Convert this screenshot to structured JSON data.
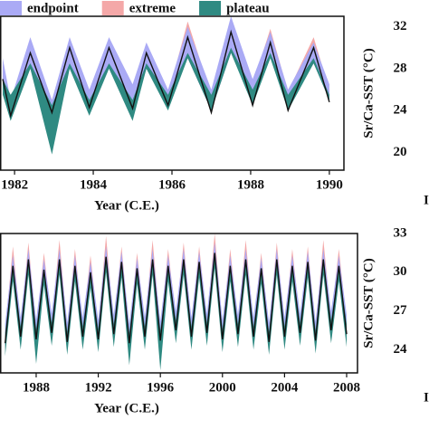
{
  "chart_data": [
    {
      "type": "line",
      "x": [
        1981.7,
        1981.9,
        1982.4,
        1982.95,
        1983.4,
        1983.9,
        1984.4,
        1985.0,
        1985.35,
        1985.9,
        1986.4,
        1987.0,
        1987.5,
        1988.05,
        1988.5,
        1988.95,
        1989.6,
        1990.0
      ],
      "xlim": [
        1981.63,
        1990.37
      ],
      "xticks": [
        1982,
        1984,
        1986,
        1988,
        1990
      ],
      "ylim": [
        18.3,
        33.0
      ],
      "y2ticks": [
        32,
        28,
        24,
        20
      ],
      "x_label": "Year (C.E.)",
      "y2_label": "Sr/Ca-SST (°C)",
      "edge_text": "I",
      "series": [
        {
          "name": "extreme",
          "color": "#f4a8a8",
          "high": [
            28.5,
            25,
            30.5,
            25,
            30.5,
            25.5,
            30.5,
            26,
            30,
            25.5,
            32.5,
            25.5,
            32.5,
            26.5,
            31.8,
            25.8,
            31,
            26
          ],
          "low": [
            26,
            24,
            28,
            22,
            28.5,
            24,
            28.5,
            23.5,
            28,
            24.5,
            29,
            24,
            29.5,
            25,
            29,
            25,
            28.5,
            25
          ]
        },
        {
          "name": "endpoint",
          "color": "#aaaaf5",
          "high": [
            29,
            25,
            31,
            25,
            31,
            26,
            31,
            26.5,
            30.5,
            26,
            32,
            26,
            33,
            27,
            31.5,
            26,
            30.5,
            26.5
          ],
          "low": [
            26,
            24,
            28,
            22,
            28.5,
            24,
            28.5,
            23.5,
            28,
            24.5,
            29,
            24,
            29.5,
            25,
            29,
            25,
            28.5,
            25
          ]
        },
        {
          "name": "plateau",
          "color": "#2f8a82",
          "high": [
            27,
            25.5,
            28.5,
            24.5,
            28.5,
            25,
            28.5,
            25,
            28.5,
            25.5,
            29.5,
            25.5,
            30,
            26,
            29.5,
            25.5,
            29,
            25.5
          ],
          "low": [
            25.5,
            23,
            28,
            19.8,
            28,
            23.5,
            28,
            23,
            28,
            24,
            29,
            24,
            29.5,
            24.5,
            29,
            24,
            28.5,
            25
          ]
        }
      ],
      "line": {
        "color": "#111111",
        "values": [
          27,
          23.5,
          29.5,
          23.8,
          30,
          24.3,
          30,
          24.2,
          29.5,
          24.5,
          31,
          23.8,
          31.5,
          24.5,
          30.5,
          24,
          30,
          24.8
        ]
      }
    },
    {
      "type": "line",
      "x": [
        1986,
        1986.5,
        1987,
        1987.5,
        1988,
        1988.5,
        1989,
        1989.5,
        1990,
        1990.5,
        1991,
        1991.5,
        1992,
        1992.5,
        1993,
        1993.5,
        1994,
        1994.5,
        1995,
        1995.5,
        1996,
        1996.5,
        1997,
        1997.5,
        1998,
        1998.5,
        1999,
        1999.5,
        2000,
        2000.5,
        2001,
        2001.5,
        2002,
        2002.5,
        2003,
        2003.5,
        2004,
        2004.5,
        2005,
        2005.5,
        2006,
        2006.5,
        2007,
        2007.5,
        2008
      ],
      "xlim": [
        1985.67,
        2008.7
      ],
      "xticks": [
        1988,
        1992,
        1996,
        2000,
        2004,
        2008
      ],
      "ylim": [
        22.2,
        33.0
      ],
      "y2ticks": [
        33,
        30,
        27,
        24
      ],
      "x_label": "Year (C.E.)",
      "y2_label": "Sr/Ca-SST (°C)",
      "edge_text": "I",
      "series": [
        {
          "color": "#f4a8a8",
          "high": [
            25.5,
            32,
            26,
            32.3,
            25.8,
            31.5,
            26.3,
            32.5,
            25.6,
            31.8,
            26,
            31.3,
            25.8,
            32.8,
            26.2,
            32,
            25.5,
            31.5,
            26,
            32.5,
            25.7,
            31.8,
            26.5,
            32.3,
            26,
            32,
            26.3,
            33,
            25.8,
            31.8,
            26.2,
            32.5,
            26,
            31.5,
            25.6,
            32.3,
            26,
            31.8,
            26.3,
            32,
            25.7,
            32.5,
            26.5,
            31.8,
            26.2
          ],
          "low": [
            24,
            29.5,
            24.5,
            30,
            24.3,
            29.2,
            24.8,
            30,
            24.1,
            29.5,
            24.5,
            29,
            24.3,
            30.2,
            24.7,
            29.8,
            24,
            29.3,
            24.5,
            30,
            24.2,
            29.5,
            25,
            30,
            24.5,
            29.8,
            24.8,
            30.5,
            24.3,
            29.5,
            24.7,
            30,
            24.5,
            29.3,
            24.1,
            30,
            24.5,
            29.5,
            24.8,
            29.8,
            24.2,
            30,
            25,
            29.5,
            24.7
          ]
        },
        {
          "color": "#aaaaf5",
          "high": [
            26,
            31.3,
            26.5,
            31.8,
            26.3,
            31,
            26.8,
            31.8,
            26.1,
            31.3,
            26.5,
            30.8,
            26.3,
            32,
            26.7,
            31.6,
            26,
            31.1,
            26.5,
            31.8,
            26.2,
            31.3,
            27,
            31.8,
            26.5,
            31.6,
            26.8,
            32.3,
            26.3,
            31.3,
            26.7,
            31.8,
            26.5,
            31.1,
            26.1,
            31.8,
            26.5,
            31.3,
            26.8,
            31.6,
            26.2,
            31.8,
            27,
            31.3,
            26.7
          ],
          "low": [
            24.2,
            29.5,
            24.7,
            30,
            24.5,
            29.2,
            25,
            30,
            24.3,
            29.5,
            24.7,
            29,
            24.5,
            30.2,
            24.9,
            29.8,
            24.2,
            29.3,
            24.7,
            30,
            24.4,
            29.5,
            25.2,
            30,
            24.7,
            29.8,
            25,
            30.5,
            24.5,
            29.5,
            24.9,
            30,
            24.7,
            29.3,
            24.3,
            30,
            24.7,
            29.5,
            25,
            29.8,
            24.4,
            30,
            25.2,
            29.5,
            24.9
          ]
        },
        {
          "color": "#2f8a82",
          "high": [
            25.3,
            30.5,
            25.8,
            31,
            25.6,
            30.2,
            26.1,
            31,
            25.4,
            30.5,
            25.8,
            30,
            25.6,
            31.2,
            26,
            30.8,
            25.3,
            30.3,
            25.8,
            31,
            25.5,
            30.5,
            26.3,
            31,
            25.8,
            30.8,
            26.1,
            31.5,
            25.6,
            30.5,
            26,
            31,
            25.8,
            30.3,
            25.4,
            31,
            25.8,
            30.5,
            26.1,
            30.8,
            25.5,
            31,
            26.3,
            30.5,
            26
          ],
          "low": [
            23.5,
            29.3,
            24,
            29.8,
            22.9,
            29,
            24.3,
            29.8,
            23.6,
            29.3,
            24,
            28.8,
            23.8,
            30,
            24.2,
            29.6,
            22.8,
            29.1,
            24,
            29.8,
            22.4,
            29.3,
            24.5,
            29.8,
            24,
            29.6,
            24.3,
            30.3,
            23.8,
            29.3,
            24.2,
            29.8,
            24,
            29.1,
            23.6,
            29.8,
            24,
            29.3,
            24.3,
            29.6,
            23.7,
            29.8,
            24.5,
            29.3,
            24.2
          ]
        }
      ],
      "line": {
        "color": "#111111",
        "values": [
          24.5,
          30.5,
          25,
          31,
          24.8,
          30.2,
          25.3,
          31,
          24.6,
          30.5,
          25,
          30,
          24.8,
          31.2,
          25.2,
          30.8,
          24.5,
          30.3,
          25,
          31,
          24.7,
          30.5,
          25.5,
          31,
          25,
          30.8,
          25.3,
          31.5,
          24.8,
          30.5,
          25.2,
          31,
          25,
          30.3,
          24.6,
          31,
          25,
          30.5,
          25.3,
          30.8,
          24.7,
          31,
          25.5,
          30.5,
          25.2
        ]
      }
    }
  ]
}
